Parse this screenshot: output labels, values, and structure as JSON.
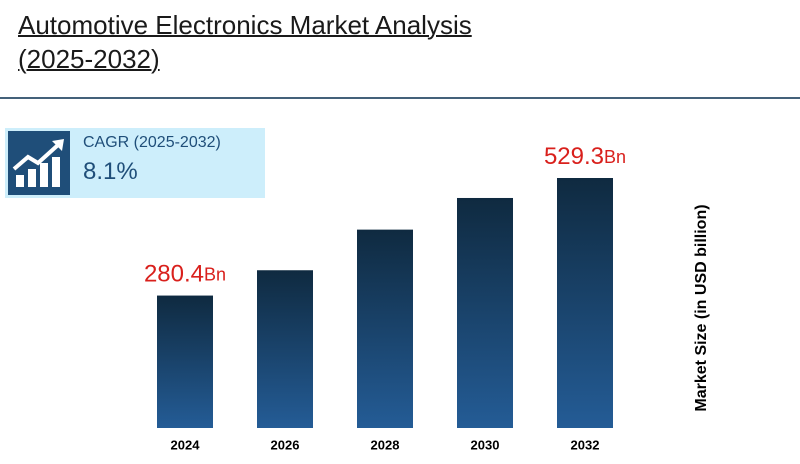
{
  "title": "Automotive Electronics Market Analysis (2025-2032)",
  "cagr": {
    "label": "CAGR (2025-2032)",
    "value": "8.1%"
  },
  "chart_data": {
    "type": "bar",
    "y_label": "Market Size (in USD billion)",
    "categories": [
      "2024",
      "2026",
      "2028",
      "2030",
      "2032"
    ],
    "values": [
      280.4,
      334,
      420,
      487,
      529.3
    ],
    "value_labels": [
      "280.4Bn",
      null,
      null,
      null,
      "529.3Bn"
    ],
    "color": "#245c96"
  }
}
